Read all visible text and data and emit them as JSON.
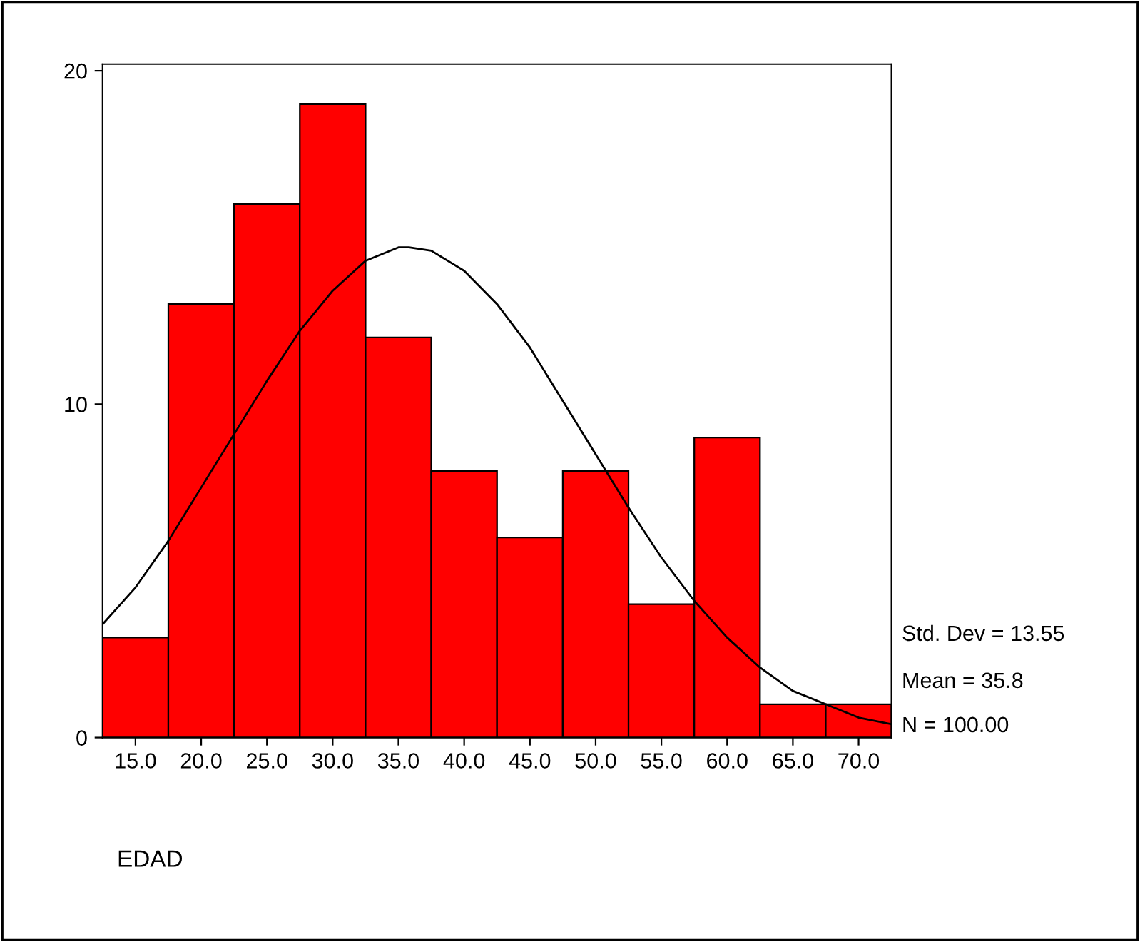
{
  "chart_data": {
    "type": "histogram",
    "xlabel": "EDAD",
    "bins": [
      12.5,
      17.5,
      22.5,
      27.5,
      32.5,
      37.5,
      42.5,
      47.5,
      52.5,
      57.5,
      62.5,
      67.5,
      72.5
    ],
    "values": [
      3,
      13,
      16,
      19,
      12,
      8,
      6,
      8,
      4,
      9,
      1,
      1
    ],
    "color": "#ff0000",
    "series": [
      {
        "type": "line",
        "color": "#000000",
        "x": [
          12.5,
          15,
          17.5,
          20,
          22.5,
          25,
          27.5,
          30,
          32.5,
          35,
          35.8,
          37.5,
          40,
          42.5,
          45,
          47.5,
          50,
          52.5,
          55,
          57.5,
          60,
          62.5,
          65,
          67.5,
          70,
          72.5
        ],
        "values": [
          3.4,
          4.5,
          5.9,
          7.5,
          9.1,
          10.7,
          12.2,
          13.4,
          14.3,
          14.7,
          14.7,
          14.6,
          14.0,
          13.0,
          11.7,
          10.1,
          8.5,
          6.9,
          5.4,
          4.1,
          3.0,
          2.1,
          1.4,
          1.0,
          0.6,
          0.4
        ]
      }
    ],
    "xlim": [
      12.5,
      72.5
    ],
    "xticks": [
      {
        "value": 15,
        "label": "15.0"
      },
      {
        "value": 20,
        "label": "20.0"
      },
      {
        "value": 25,
        "label": "25.0"
      },
      {
        "value": 30,
        "label": "30.0"
      },
      {
        "value": 35,
        "label": "35.0"
      },
      {
        "value": 40,
        "label": "40.0"
      },
      {
        "value": 45,
        "label": "45.0"
      },
      {
        "value": 50,
        "label": "50.0"
      },
      {
        "value": 55,
        "label": "55.0"
      },
      {
        "value": 60,
        "label": "60.0"
      },
      {
        "value": 65,
        "label": "65.0"
      },
      {
        "value": 70,
        "label": "70.0"
      }
    ],
    "ylim": [
      0,
      20.2
    ],
    "yticks": [
      0,
      10,
      20
    ],
    "grid": false,
    "annotations": [
      "Std. Dev = 13.55",
      "Mean = 35.8",
      "N = 100.00"
    ]
  }
}
